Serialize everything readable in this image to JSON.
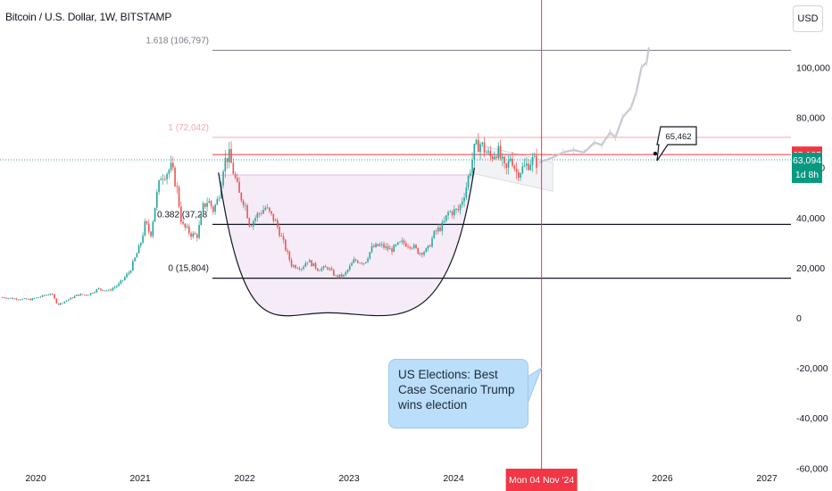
{
  "header": {
    "symbol_title": "Bitcoin / U.S. Dollar, 1W, BITSTAMP",
    "currency_button": "USD"
  },
  "colors": {
    "up": "#26a69a",
    "down": "#ef5350",
    "marker_line": "#f23645",
    "fib_one": "#f6a8b0",
    "cup_fill": "#f3e5f5",
    "callout_bg": "#bbdefb",
    "price_badge_green": "#089981",
    "price_badge_red": "#f23645"
  },
  "callout": {
    "text": "US Elections: Best Case Scenario Trump wins election"
  },
  "price_note": {
    "label": "65,462"
  },
  "price_badges": {
    "level_red": "65,185",
    "last_price": "63,094",
    "countdown": "1d 8h"
  },
  "crosshair_date": "Mon 04 Nov '24",
  "chart_data": {
    "type": "candlestick",
    "title": "Bitcoin / U.S. Dollar, 1W, BITSTAMP",
    "y_axis": {
      "ticks": [
        "100,000",
        "80,000",
        "60,000",
        "40,000",
        "20,000",
        "0",
        "-20,000",
        "-40,000",
        "-60,000"
      ],
      "tick_values": [
        100000,
        80000,
        60000,
        40000,
        20000,
        0,
        -20000,
        -40000,
        -60000
      ],
      "range": [
        -60000,
        115000
      ]
    },
    "x_axis": {
      "ticks": [
        "2020",
        "2021",
        "2022",
        "2023",
        "2024",
        "2026",
        "2027"
      ],
      "tick_years": [
        2020,
        2021,
        2022,
        2023,
        2024,
        2026,
        2027
      ],
      "range_years": [
        2019.68,
        2027.15
      ]
    },
    "fib_levels": [
      {
        "label": "1.618 (106,797)",
        "value": 106797
      },
      {
        "label": "1 (72,042)",
        "value": 72042
      },
      {
        "label": "0.382 (37,28",
        "value": 37280
      },
      {
        "label": "0 (15,804)",
        "value": 15804
      }
    ],
    "horizontal_levels": [
      65185,
      63094
    ],
    "marker_date": "2024-11-04",
    "price_path": [
      [
        2019.68,
        8200
      ],
      [
        2019.8,
        7600
      ],
      [
        2019.95,
        7300
      ],
      [
        2020.05,
        8500
      ],
      [
        2020.15,
        9800
      ],
      [
        2020.21,
        5200
      ],
      [
        2020.3,
        7000
      ],
      [
        2020.4,
        9200
      ],
      [
        2020.5,
        9200
      ],
      [
        2020.6,
        11500
      ],
      [
        2020.7,
        10800
      ],
      [
        2020.8,
        13500
      ],
      [
        2020.9,
        18500
      ],
      [
        2021.0,
        29000
      ],
      [
        2021.05,
        38000
      ],
      [
        2021.1,
        33000
      ],
      [
        2021.15,
        47000
      ],
      [
        2021.2,
        57000
      ],
      [
        2021.25,
        58000
      ],
      [
        2021.3,
        60000
      ],
      [
        2021.35,
        52000
      ],
      [
        2021.4,
        37000
      ],
      [
        2021.45,
        35000
      ],
      [
        2021.5,
        33000
      ],
      [
        2021.55,
        33000
      ],
      [
        2021.6,
        44000
      ],
      [
        2021.65,
        47000
      ],
      [
        2021.7,
        43000
      ],
      [
        2021.75,
        48000
      ],
      [
        2021.8,
        62000
      ],
      [
        2021.85,
        65000
      ],
      [
        2021.9,
        57000
      ],
      [
        2021.95,
        49000
      ],
      [
        2022.0,
        46000
      ],
      [
        2022.05,
        37000
      ],
      [
        2022.12,
        41000
      ],
      [
        2022.2,
        44000
      ],
      [
        2022.3,
        38000
      ],
      [
        2022.38,
        29000
      ],
      [
        2022.45,
        21000
      ],
      [
        2022.55,
        20000
      ],
      [
        2022.6,
        23000
      ],
      [
        2022.7,
        19500
      ],
      [
        2022.8,
        20000
      ],
      [
        2022.87,
        16500
      ],
      [
        2022.95,
        16800
      ],
      [
        2023.05,
        23000
      ],
      [
        2023.15,
        22000
      ],
      [
        2023.22,
        28000
      ],
      [
        2023.3,
        29000
      ],
      [
        2023.4,
        27000
      ],
      [
        2023.5,
        30000
      ],
      [
        2023.6,
        29000
      ],
      [
        2023.67,
        26000
      ],
      [
        2023.75,
        27000
      ],
      [
        2023.82,
        34000
      ],
      [
        2023.9,
        37000
      ],
      [
        2023.95,
        42000
      ],
      [
        2024.05,
        43000
      ],
      [
        2024.12,
        52000
      ],
      [
        2024.2,
        67000
      ],
      [
        2024.25,
        70000
      ],
      [
        2024.35,
        64000
      ],
      [
        2024.42,
        67000
      ],
      [
        2024.5,
        58000
      ],
      [
        2024.55,
        65000
      ],
      [
        2024.6,
        58000
      ],
      [
        2024.68,
        60000
      ],
      [
        2024.75,
        63000
      ],
      [
        2024.8,
        62000
      ]
    ],
    "projection_path": [
      [
        2024.82,
        62000
      ],
      [
        2024.95,
        64000
      ],
      [
        2025.05,
        66000
      ],
      [
        2025.15,
        67000
      ],
      [
        2025.25,
        66000
      ],
      [
        2025.35,
        70000
      ],
      [
        2025.42,
        69000
      ],
      [
        2025.5,
        74000
      ],
      [
        2025.55,
        72000
      ],
      [
        2025.62,
        80000
      ],
      [
        2025.7,
        84000
      ],
      [
        2025.75,
        90000
      ],
      [
        2025.8,
        100000
      ],
      [
        2025.85,
        102000
      ],
      [
        2025.87,
        108000
      ]
    ],
    "cup_curve": [
      [
        2021.75,
        58000
      ],
      [
        2022.8,
        2000
      ],
      [
        2024.2,
        60000
      ]
    ]
  }
}
